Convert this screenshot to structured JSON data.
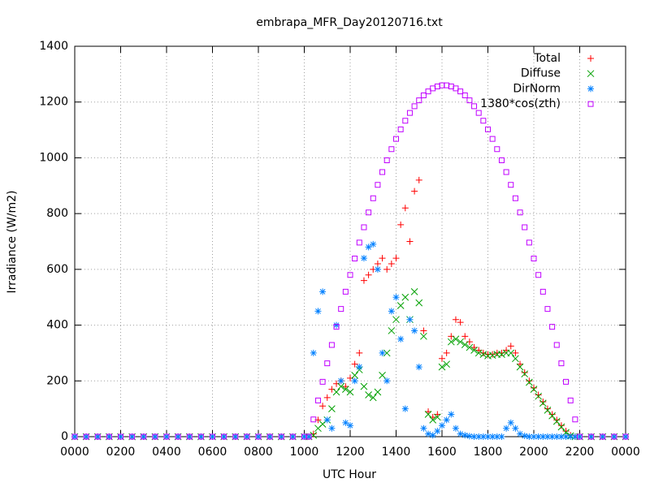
{
  "chart_data": {
    "type": "scatter",
    "title": "embrapa_MFR_Day20120716.txt",
    "xlabel": "UTC Hour",
    "ylabel": "Irradiance (W/m2)",
    "xlim": [
      0,
      24
    ],
    "ylim": [
      0,
      1400
    ],
    "xticks": [
      {
        "value": 0,
        "label": "0000"
      },
      {
        "value": 2,
        "label": "0200"
      },
      {
        "value": 4,
        "label": "0400"
      },
      {
        "value": 6,
        "label": "0600"
      },
      {
        "value": 8,
        "label": "0800"
      },
      {
        "value": 10,
        "label": "1000"
      },
      {
        "value": 12,
        "label": "1200"
      },
      {
        "value": 14,
        "label": "1400"
      },
      {
        "value": 16,
        "label": "1600"
      },
      {
        "value": 18,
        "label": "1800"
      },
      {
        "value": 20,
        "label": "2000"
      },
      {
        "value": 22,
        "label": "2200"
      },
      {
        "value": 24,
        "label": "0000"
      }
    ],
    "yticks": [
      0,
      200,
      400,
      600,
      800,
      1000,
      1200,
      1400
    ],
    "grid": true,
    "legend": "top-right",
    "x": [
      0,
      0.5,
      1,
      1.5,
      2,
      2.5,
      3,
      3.5,
      4,
      4.5,
      5,
      5.5,
      6,
      6.5,
      7,
      7.5,
      8,
      8.5,
      9,
      9.5,
      10,
      10.2,
      10.4,
      10.6,
      10.8,
      11,
      11.2,
      11.4,
      11.6,
      11.8,
      12,
      12.2,
      12.4,
      12.6,
      12.8,
      13,
      13.2,
      13.4,
      13.6,
      13.8,
      14,
      14.2,
      14.4,
      14.6,
      14.8,
      15,
      15.2,
      15.4,
      15.6,
      15.8,
      16,
      16.2,
      16.4,
      16.6,
      16.8,
      17,
      17.2,
      17.4,
      17.6,
      17.8,
      18,
      18.2,
      18.4,
      18.6,
      18.8,
      19,
      19.2,
      19.4,
      19.6,
      19.8,
      20,
      20.2,
      20.4,
      20.6,
      20.8,
      21,
      21.2,
      21.4,
      21.6,
      21.8,
      22,
      22.5,
      23,
      23.5,
      24
    ],
    "series": [
      {
        "name": "Total",
        "color": "#ff0000",
        "marker": "plus",
        "values": [
          0,
          0,
          0,
          0,
          0,
          0,
          0,
          0,
          0,
          0,
          0,
          0,
          0,
          0,
          0,
          0,
          0,
          0,
          0,
          0,
          0,
          0,
          10,
          60,
          110,
          140,
          170,
          190,
          200,
          180,
          210,
          260,
          300,
          560,
          580,
          600,
          620,
          640,
          600,
          620,
          640,
          760,
          820,
          700,
          880,
          920,
          380,
          90,
          70,
          80,
          280,
          300,
          360,
          420,
          410,
          360,
          340,
          320,
          310,
          300,
          295,
          295,
          300,
          300,
          310,
          325,
          300,
          260,
          230,
          200,
          175,
          150,
          125,
          100,
          80,
          60,
          40,
          20,
          5,
          0,
          0,
          0,
          0,
          0,
          0
        ]
      },
      {
        "name": "Diffuse",
        "color": "#00a000",
        "marker": "cross",
        "values": [
          0,
          0,
          0,
          0,
          0,
          0,
          0,
          0,
          0,
          0,
          0,
          0,
          0,
          0,
          0,
          0,
          0,
          0,
          0,
          0,
          0,
          0,
          5,
          30,
          45,
          60,
          100,
          160,
          180,
          170,
          160,
          220,
          240,
          180,
          150,
          140,
          160,
          220,
          300,
          380,
          420,
          470,
          500,
          420,
          520,
          480,
          360,
          80,
          60,
          70,
          250,
          260,
          340,
          350,
          340,
          330,
          320,
          310,
          300,
          295,
          290,
          292,
          295,
          295,
          300,
          300,
          280,
          250,
          225,
          195,
          170,
          145,
          120,
          95,
          75,
          55,
          35,
          15,
          3,
          0,
          0,
          0,
          0,
          0,
          0
        ]
      },
      {
        "name": "DirNorm",
        "color": "#0080ff",
        "marker": "star",
        "values": [
          0,
          0,
          0,
          0,
          0,
          0,
          0,
          0,
          0,
          0,
          0,
          0,
          0,
          0,
          0,
          0,
          0,
          0,
          0,
          0,
          0,
          0,
          300,
          450,
          520,
          60,
          30,
          400,
          200,
          50,
          40,
          200,
          250,
          640,
          680,
          690,
          600,
          300,
          200,
          450,
          500,
          350,
          100,
          420,
          380,
          250,
          30,
          10,
          5,
          20,
          40,
          60,
          80,
          30,
          10,
          5,
          2,
          0,
          0,
          0,
          0,
          0,
          0,
          0,
          30,
          50,
          30,
          10,
          3,
          0,
          0,
          0,
          0,
          0,
          0,
          0,
          0,
          0,
          0,
          0,
          0,
          0,
          0,
          0,
          0
        ]
      },
      {
        "name": "1380*cos(zth)",
        "color": "#c000ff",
        "marker": "square",
        "values": [
          0,
          0,
          0,
          0,
          0,
          0,
          0,
          0,
          0,
          0,
          0,
          0,
          0,
          0,
          0,
          0,
          0,
          0,
          0,
          0,
          0,
          0,
          62,
          130,
          197,
          263,
          329,
          394,
          458,
          520,
          580,
          639,
          696,
          751,
          804,
          855,
          903,
          949,
          991,
          1031,
          1068,
          1102,
          1133,
          1161,
          1185,
          1206,
          1224,
          1238,
          1249,
          1256,
          1260,
          1260,
          1256,
          1249,
          1238,
          1224,
          1206,
          1185,
          1161,
          1133,
          1102,
          1068,
          1031,
          991,
          949,
          903,
          855,
          804,
          751,
          696,
          639,
          580,
          520,
          458,
          394,
          329,
          263,
          197,
          130,
          62,
          0,
          0,
          0,
          0,
          0
        ]
      }
    ]
  }
}
